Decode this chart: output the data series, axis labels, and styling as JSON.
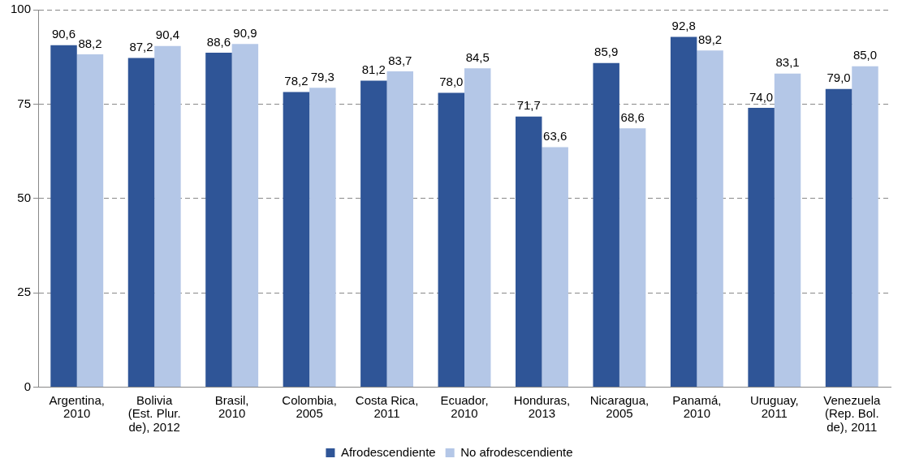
{
  "chart_data": {
    "type": "bar",
    "categories": [
      "Argentina, 2010",
      "Bolivia (Est. Plur. de), 2012",
      "Brasil, 2010",
      "Colombia, 2005",
      "Costa Rica, 2011",
      "Ecuador, 2010",
      "Honduras, 2013",
      "Nicaragua, 2005",
      "Panamá, 2010",
      "Uruguay, 2011",
      "Venezuela (Rep. Bol. de), 2011"
    ],
    "series": [
      {
        "name": "Afrodescendiente",
        "color": "#2f5597",
        "values": [
          90.6,
          87.2,
          88.6,
          78.2,
          81.2,
          78.0,
          71.7,
          85.9,
          92.8,
          74.0,
          79.0
        ],
        "value_labels": [
          "90,6",
          "87,2",
          "88,6",
          "78,2",
          "81,2",
          "78,0",
          "71,7",
          "85,9",
          "92,8",
          "74,0",
          "79,0"
        ]
      },
      {
        "name": "No afrodescendiente",
        "color": "#b4c7e7",
        "values": [
          88.2,
          90.4,
          90.9,
          79.3,
          83.7,
          84.5,
          63.6,
          68.6,
          89.2,
          83.1,
          85.0
        ],
        "value_labels": [
          "88,2",
          "90,4",
          "90,9",
          "79,3",
          "83,7",
          "84,5",
          "63,6",
          "68,6",
          "89,2",
          "83,1",
          "85,0"
        ]
      }
    ],
    "ylim": [
      0,
      100
    ],
    "yticks": [
      0,
      25,
      50,
      75,
      100
    ],
    "grid": "y",
    "legend": "bottom"
  }
}
